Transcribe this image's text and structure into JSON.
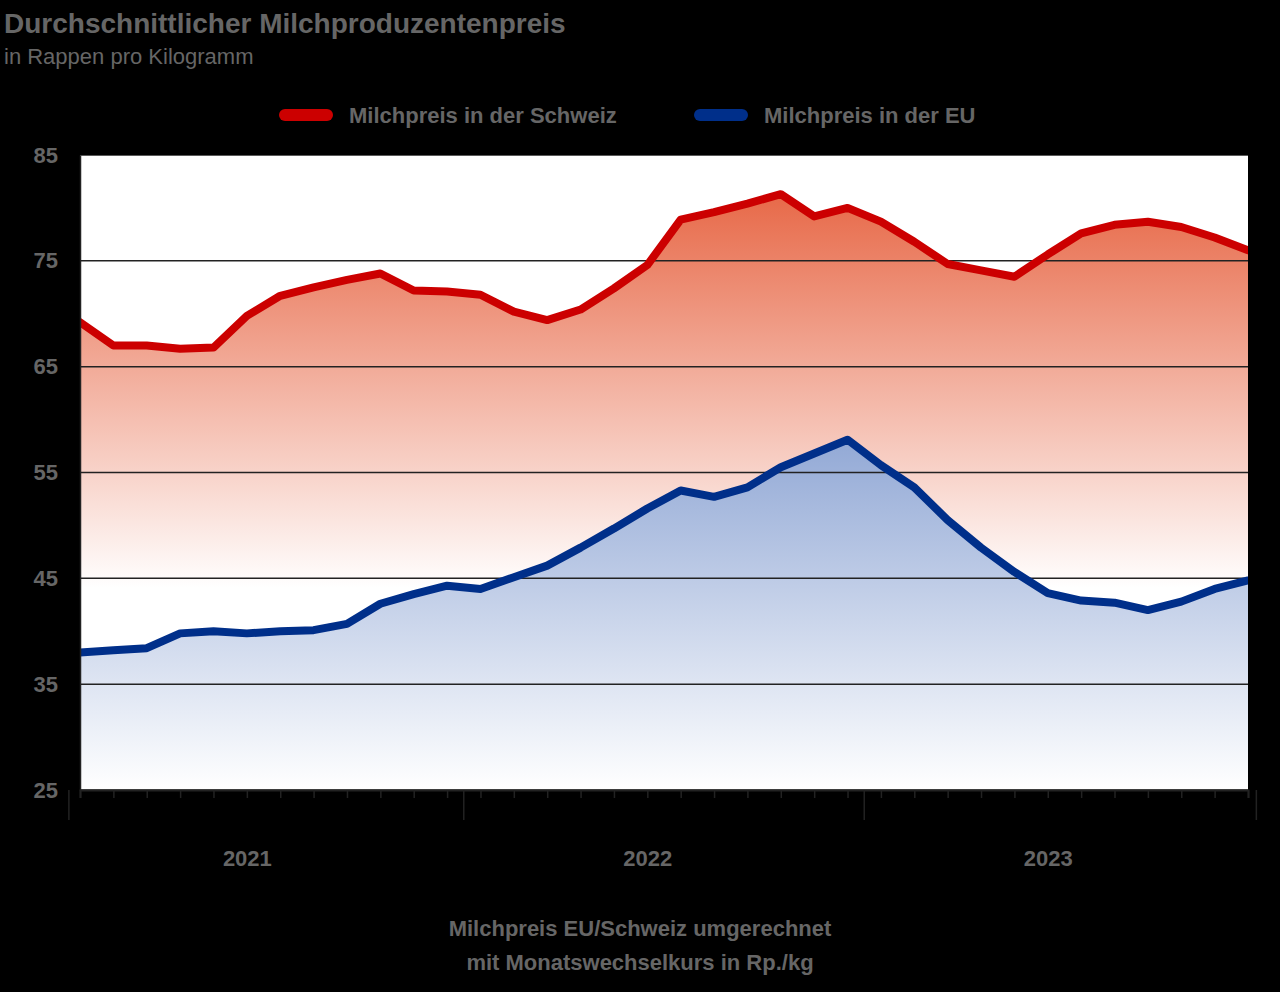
{
  "chart_data": {
    "type": "area",
    "title": "Durchschnittlicher Milchproduzentenpreis",
    "subtitle": "in Rappen pro Kilogramm",
    "notes": [
      "Milchpreis EU/Schweiz umgerechnet",
      "mit Monatswechselkurs in Rp./kg"
    ],
    "categories": [
      null,
      null,
      null,
      null,
      null,
      "2021",
      null,
      null,
      null,
      null,
      null,
      null,
      null,
      null,
      null,
      null,
      null,
      "2022",
      null,
      null,
      null,
      null,
      null,
      null,
      null,
      null,
      null,
      null,
      null,
      "2023",
      null,
      null,
      null,
      null,
      null,
      null
    ],
    "series": [
      {
        "name": "Milchpreis in der Schweiz",
        "color": "#cc0000",
        "values": [
          69.2,
          67.0,
          67.0,
          66.7,
          66.8,
          69.8,
          71.7,
          72.5,
          73.2,
          73.8,
          72.2,
          72.1,
          71.8,
          70.2,
          69.4,
          70.4,
          72.4,
          74.6,
          78.9,
          79.6,
          80.4,
          81.3,
          79.2,
          80.0,
          78.7,
          76.8,
          74.7,
          74.1,
          73.5,
          75.6,
          77.6,
          78.4,
          78.7,
          78.2,
          77.2,
          76.0
        ]
      },
      {
        "name": "Milchpreis in der EU",
        "color": "#002f8a",
        "values": [
          38.0,
          38.2,
          38.4,
          39.8,
          40.0,
          39.8,
          40.0,
          40.1,
          40.7,
          42.6,
          43.5,
          44.3,
          44.0,
          45.1,
          46.2,
          47.9,
          49.7,
          51.6,
          53.3,
          52.7,
          53.6,
          55.5,
          56.8,
          58.1,
          55.7,
          53.6,
          50.5,
          47.9,
          45.6,
          43.6,
          42.9,
          42.7,
          42.0,
          42.8,
          44.0,
          44.8
        ]
      }
    ],
    "ylim": [
      25,
      85
    ],
    "yticks": [
      25,
      35,
      45,
      55,
      65,
      75,
      85
    ],
    "grid": true,
    "legend": "top"
  }
}
